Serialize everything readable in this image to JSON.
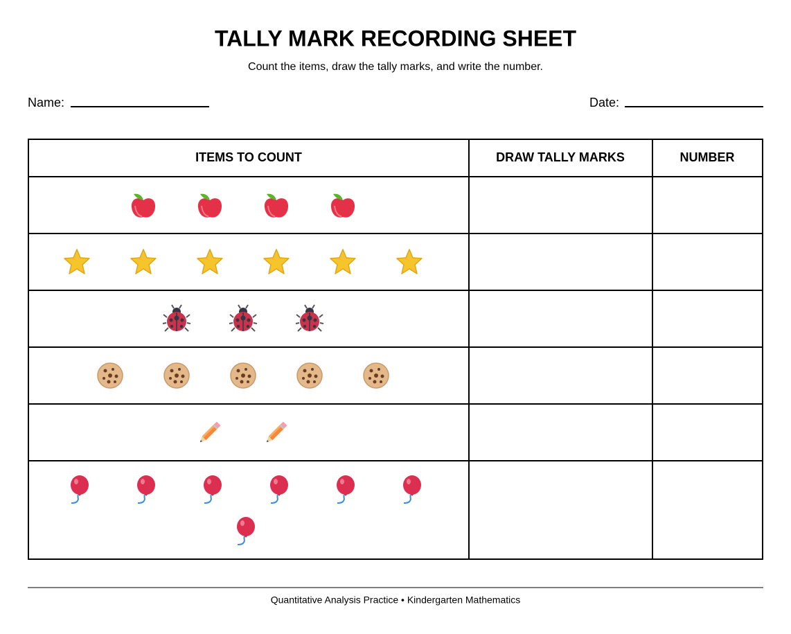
{
  "header": {
    "title": "TALLY MARK RECORDING SHEET",
    "subtitle": "Count the items, draw the tally marks, and write the number."
  },
  "fields": {
    "name": "Name:",
    "date": "Date:"
  },
  "table": {
    "headers": [
      "ITEMS TO COUNT",
      "DRAW TALLY MARKS",
      "NUMBER"
    ]
  },
  "footer": "Quantitative Analysis Practice • Kindergarten Mathematics"
}
